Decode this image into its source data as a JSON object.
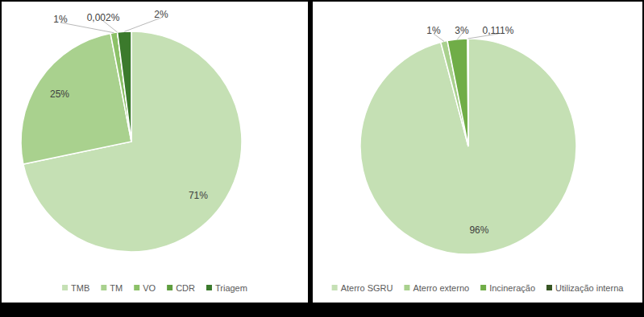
{
  "chart_data": [
    {
      "type": "pie",
      "categories": [
        "TMB",
        "TM",
        "VO",
        "CDR",
        "Triagem"
      ],
      "values": [
        71,
        25,
        1,
        0.002,
        2
      ],
      "value_labels": [
        "71%",
        "25%",
        "1%",
        "0,002%",
        "2%"
      ],
      "colors": [
        "#c5e0b4",
        "#a9d18e",
        "#8cc168",
        "#5f9e3f",
        "#3b7a2c"
      ],
      "data_labels": true,
      "legend": "bottom"
    },
    {
      "type": "pie",
      "categories": [
        "Aterro SGRU",
        "Aterro externo",
        "Incineração",
        "Utilização interna"
      ],
      "values": [
        96,
        1,
        3,
        0.111
      ],
      "value_labels": [
        "96%",
        "1%",
        "3%",
        "0,111%"
      ],
      "colors": [
        "#c5e0b4",
        "#a9d18e",
        "#70ad47",
        "#375623"
      ],
      "data_labels": true,
      "legend": "bottom"
    }
  ]
}
